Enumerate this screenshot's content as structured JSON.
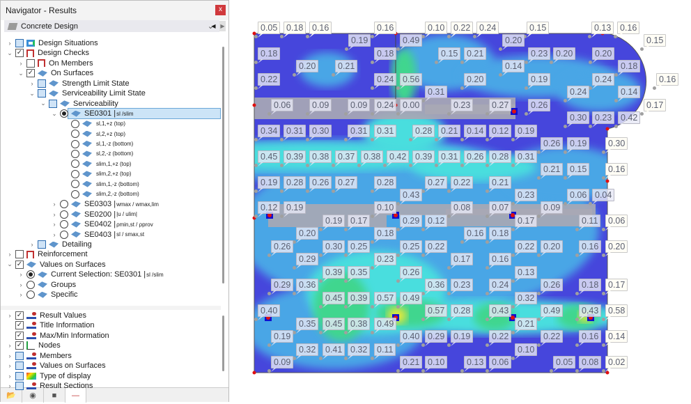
{
  "window": {
    "title": "Navigator - Results",
    "close": "x"
  },
  "combo": {
    "value": "Concrete Design"
  },
  "tree": [
    {
      "level": 0,
      "exp": ">",
      "box": "part",
      "icon": "ds",
      "label": "Design Situations"
    },
    {
      "level": 0,
      "exp": "v",
      "box": "checked",
      "icon": "frame",
      "label": "Design Checks"
    },
    {
      "level": 1,
      "exp": ">",
      "box": "empty",
      "icon": "frame",
      "label": "On Members"
    },
    {
      "level": 1,
      "exp": "v",
      "box": "checked",
      "icon": "surf",
      "label": "On Surfaces"
    },
    {
      "level": 2,
      "exp": ">",
      "box": "part",
      "icon": "surf",
      "label": "Strength Limit State"
    },
    {
      "level": 2,
      "exp": "v",
      "box": "part",
      "icon": "surf",
      "label": "Serviceability Limit State"
    },
    {
      "level": 3,
      "exp": "v",
      "box": "part",
      "icon": "surf",
      "label": "Serviceability"
    },
    {
      "level": 4,
      "exp": "v",
      "radio": "on",
      "icon": "surf",
      "label": "SE0301 | ",
      "sub": "sl /slim",
      "selected": true
    },
    {
      "level": 5,
      "radio": "off",
      "icon": "surf",
      "sub": "sl,1,+z (top)"
    },
    {
      "level": 5,
      "radio": "off",
      "icon": "surf",
      "sub": "sl,2,+z (top)"
    },
    {
      "level": 5,
      "radio": "off",
      "icon": "surf",
      "sub": "sl,1,-z (bottom)"
    },
    {
      "level": 5,
      "radio": "off",
      "icon": "surf",
      "sub": "sl,2,-z (bottom)"
    },
    {
      "level": 5,
      "radio": "off",
      "icon": "surf",
      "sub": "slim,1,+z (top)"
    },
    {
      "level": 5,
      "radio": "off",
      "icon": "surf",
      "sub": "slim,2,+z (top)"
    },
    {
      "level": 5,
      "radio": "off",
      "icon": "surf",
      "sub": "slim,1,-z (bottom)"
    },
    {
      "level": 5,
      "radio": "off",
      "icon": "surf",
      "sub": "slim,2,-z (bottom)"
    },
    {
      "level": 4,
      "exp": ">",
      "radio": "off",
      "icon": "surf",
      "label": "SE0303 | ",
      "sub": "wmax / wmax,lim"
    },
    {
      "level": 4,
      "exp": ">",
      "radio": "off",
      "icon": "surf",
      "label": "SE0200 | ",
      "sub": "|u / ulim|"
    },
    {
      "level": 4,
      "exp": ">",
      "radio": "off",
      "icon": "surf",
      "label": "SE0402 | ",
      "sub": "ρmin,st / ρprov"
    },
    {
      "level": 4,
      "exp": ">",
      "radio": "off",
      "icon": "surf",
      "label": "SE0403 | ",
      "sub": "sl / smax,st"
    },
    {
      "level": 2,
      "exp": ">",
      "box": "part",
      "icon": "surf",
      "label": "Detailing"
    },
    {
      "level": 0,
      "exp": ">",
      "box": "empty",
      "icon": "frame",
      "label": "Reinforcement"
    },
    {
      "level": 0,
      "exp": "v",
      "box": "checked",
      "icon": "surf",
      "label": "Values on Surfaces"
    },
    {
      "level": 1,
      "exp": ">",
      "radio": "on",
      "icon": "surf",
      "label": "Current Selection: SE0301 | ",
      "sub": "sl /slim"
    },
    {
      "level": 1,
      "exp": ">",
      "radio": "off",
      "icon": "surf",
      "label": "Groups"
    },
    {
      "level": 1,
      "exp": ">",
      "radio": "off",
      "icon": "surf",
      "label": "Specific"
    }
  ],
  "tree2": [
    {
      "exp": ">",
      "box": "checked",
      "icon": "res",
      "label": "Result Values"
    },
    {
      "exp": "",
      "box": "checked",
      "icon": "res",
      "label": "Title Information"
    },
    {
      "exp": "",
      "box": "checked",
      "icon": "res",
      "label": "Max/Min Information"
    },
    {
      "exp": ">",
      "box": "checked",
      "icon": "node",
      "label": "Nodes"
    },
    {
      "exp": ">",
      "box": "part",
      "icon": "res",
      "label": "Members"
    },
    {
      "exp": ">",
      "box": "part",
      "icon": "res",
      "label": "Values on Surfaces"
    },
    {
      "exp": ">",
      "box": "part",
      "icon": "disp",
      "label": "Type of display"
    },
    {
      "exp": ">",
      "box": "part",
      "icon": "res",
      "label": "Result Sections"
    }
  ],
  "tabs": [
    {
      "icon": "project-icon"
    },
    {
      "icon": "eye-icon"
    },
    {
      "icon": "camera-icon"
    },
    {
      "icon": "results-icon",
      "active": true
    }
  ],
  "colors": {
    "level1": "#4646dc",
    "level2": "#4aa6e6",
    "level3": "#48dede",
    "level4": "#3fd68e",
    "level5": "#e8e83a",
    "inactive": "#a8a8b4"
  },
  "result_values": [
    "0.05",
    "0.18",
    "0.16",
    "0.16",
    "0.10",
    "0.22",
    "0.24",
    "0.15",
    "0.13",
    "0.16",
    "0.15",
    "0.19",
    "0.49",
    "0.15",
    "0.21",
    "0.20",
    "0.23",
    "0.20",
    "0.18",
    "0.18",
    "0.14",
    "0.20",
    "0.18",
    "0.20",
    "0.21",
    "0.22",
    "0.24",
    "0.56",
    "0.20",
    "0.19",
    "0.24",
    "0.16",
    "0.31",
    "0.24",
    "0.14",
    "0.06",
    "0.09",
    "0.09",
    "0.24",
    "0.00",
    "0.23",
    "0.27",
    "0.26",
    "0.17",
    "0.30",
    "0.23",
    "0.42",
    "0.34",
    "0.31",
    "0.30",
    "0.31",
    "0.31",
    "0.28",
    "0.21",
    "0.14",
    "0.12",
    "0.19",
    "0.26",
    "0.19",
    "0.30",
    "0.45",
    "0.39",
    "0.38",
    "0.37",
    "0.38",
    "0.42",
    "0.39",
    "0.31",
    "0.26",
    "0.28",
    "0.31",
    "0.21",
    "0.15",
    "0.16",
    "0.19",
    "0.28",
    "0.26",
    "0.27",
    "0.28",
    "0.27",
    "0.22",
    "0.21",
    "0.43",
    "0.23",
    "0.06",
    "0.04",
    "0.12",
    "0.19",
    "0.10",
    "0.08",
    "0.07",
    "0.09",
    "0.19",
    "0.17",
    "0.29",
    "0.12",
    "0.17",
    "0.11",
    "0.06",
    "0.20",
    "0.18",
    "0.16",
    "0.18",
    "0.26",
    "0.30",
    "0.25",
    "0.25",
    "0.22",
    "0.22",
    "0.20",
    "0.16",
    "0.20",
    "0.29",
    "0.23",
    "0.17",
    "0.16",
    "0.39",
    "0.35",
    "0.26",
    "0.13",
    "0.29",
    "0.36",
    "0.36",
    "0.23",
    "0.24",
    "0.26",
    "0.18",
    "0.17",
    "0.45",
    "0.39",
    "0.57",
    "0.49",
    "0.32",
    "0.40",
    "0.57",
    "0.28",
    "0.43",
    "0.49",
    "0.43",
    "0.58",
    "0.35",
    "0.45",
    "0.38",
    "0.49",
    "0.21",
    "0.19",
    "0.40",
    "0.29",
    "0.19",
    "0.22",
    "0.22",
    "0.16",
    "0.14",
    "0.32",
    "0.41",
    "0.32",
    "0.11",
    "0.10",
    "0.09",
    "0.21",
    "0.10",
    "0.13",
    "0.06",
    "0.05",
    "0.08",
    "0.02"
  ]
}
